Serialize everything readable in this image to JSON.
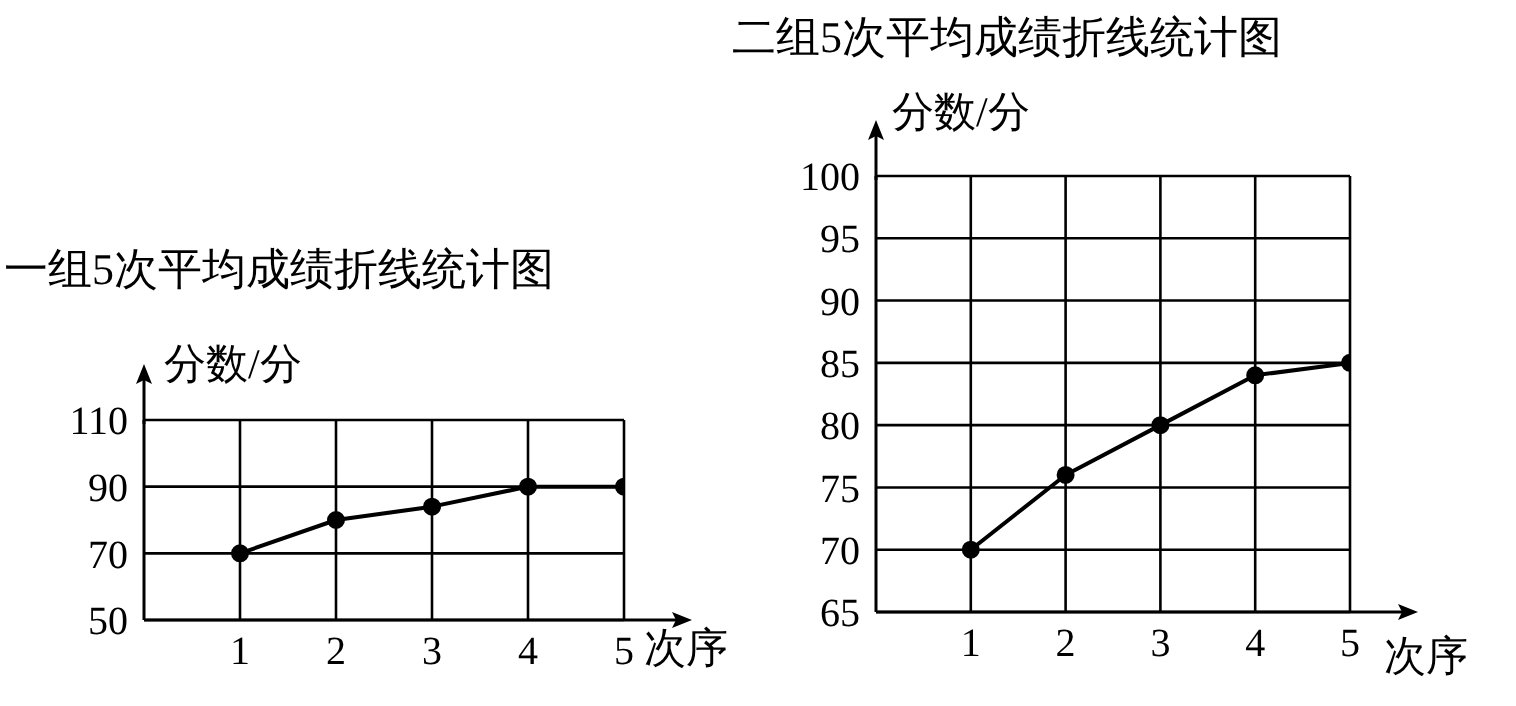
{
  "chart_data": [
    {
      "type": "line",
      "title": "一组5次平均成绩折线统计图",
      "ylabel": "分数/分",
      "xlabel": "次序",
      "x": [
        1,
        2,
        3,
        4,
        5
      ],
      "xlim": [
        0,
        5
      ],
      "xticks": [
        1,
        2,
        3,
        4,
        5
      ],
      "ylim": [
        50,
        110
      ],
      "yticks": [
        50,
        70,
        90,
        110
      ],
      "grid": true,
      "marker": "circle",
      "line_style": "solid",
      "series": [
        {
          "color": "#000000",
          "values": [
            70,
            80,
            84,
            90,
            90
          ]
        }
      ]
    },
    {
      "type": "line",
      "title": "二组5次平均成绩折线统计图",
      "ylabel": "分数/分",
      "xlabel": "次序",
      "x": [
        1,
        2,
        3,
        4,
        5
      ],
      "xlim": [
        0,
        5
      ],
      "xticks": [
        1,
        2,
        3,
        4,
        5
      ],
      "ylim": [
        65,
        100
      ],
      "yticks": [
        65,
        70,
        75,
        80,
        85,
        90,
        95,
        100
      ],
      "grid": true,
      "marker": "circle",
      "line_style": "solid",
      "series": [
        {
          "color": "#000000",
          "values": [
            70,
            76,
            80,
            84,
            85
          ]
        }
      ]
    }
  ]
}
